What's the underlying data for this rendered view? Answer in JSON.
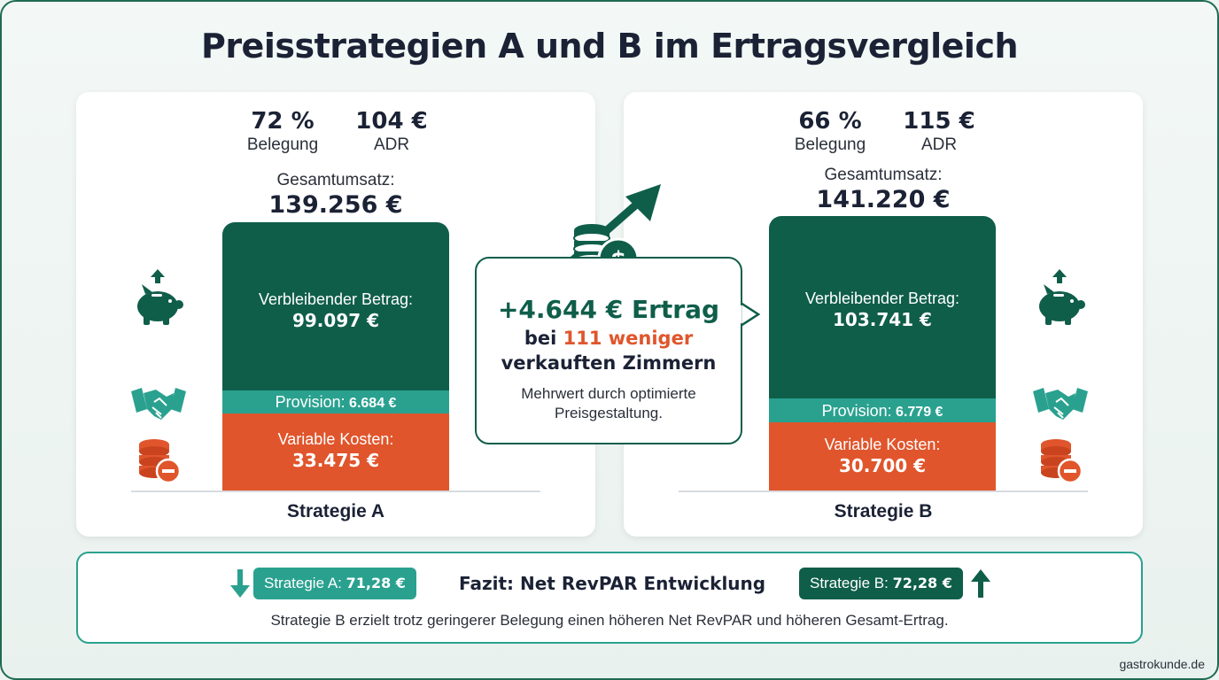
{
  "title": "Preisstrategien A und B im Ertragsvergleich",
  "strategies": [
    {
      "occupancy": "72 %",
      "occupancy_label": "Belegung",
      "adr": "104 €",
      "adr_label": "ADR",
      "total_label": "Gesamtumsatz:",
      "total": "139.256 €",
      "remaining_label": "Verbleibender Betrag:",
      "remaining": "99.097 €",
      "commission_label": "Provision:",
      "commission": "6.684 €",
      "variable_label": "Variable Kosten:",
      "variable": "33.475 €",
      "name": "Strategie A"
    },
    {
      "occupancy": "66 %",
      "occupancy_label": "Belegung",
      "adr": "115 €",
      "adr_label": "ADR",
      "total_label": "Gesamtumsatz:",
      "total": "141.220 €",
      "remaining_label": "Verbleibender Betrag:",
      "remaining": "103.741 €",
      "commission_label": "Provision:",
      "commission": "6.779 €",
      "variable_label": "Variable Kosten:",
      "variable": "30.700 €",
      "name": "Strategie B"
    }
  ],
  "callout": {
    "headline": "+4.644 € Ertrag",
    "line2_pre": "bei ",
    "line2_highlight": "111 weniger",
    "line3": "verkauften Zimmern",
    "note": "Mehrwert durch optimierte Preisgestaltung."
  },
  "summary": {
    "pill_a_label": "Strategie A:",
    "pill_a_value": "71,28 €",
    "title": "Fazit: Net RevPAR Entwicklung",
    "pill_b_label": "Strategie B:",
    "pill_b_value": "72,28 €",
    "text": "Strategie B erzielt trotz geringerer Belegung einen höheren Net RevPAR und höheren Gesamt-Ertrag."
  },
  "footer": "gastrokunde.de",
  "colors": {
    "dark_green": "#0f5e4a",
    "teal": "#2aa18f",
    "orange": "#e0552c",
    "navy": "#1b2235"
  },
  "icons": [
    "piggy-bank-icon",
    "handshake-icon",
    "coin-stack-minus-icon",
    "coins-dollar-icon",
    "arrow-up-icon",
    "arrow-down-icon"
  ]
}
